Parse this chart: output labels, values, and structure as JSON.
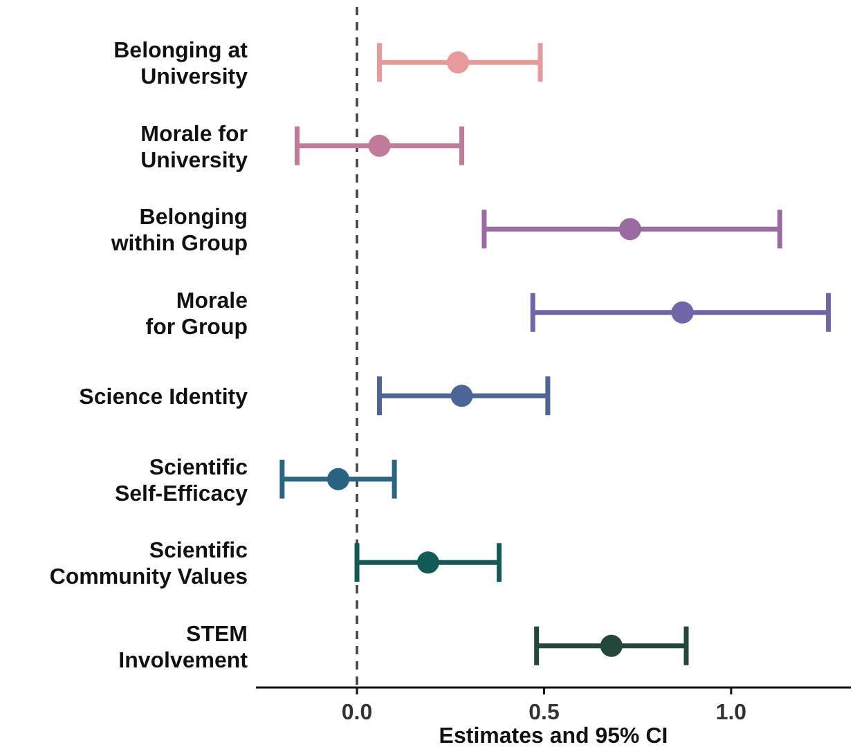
{
  "chart_data": {
    "type": "scatter",
    "orientation": "horizontal",
    "xlabel": "Estimates and 95% CI",
    "categories": [
      "Belonging at\nUniversity",
      "Morale for\nUniversity",
      "Belonging\nwithin Group",
      "Morale\nfor Group",
      "Science Identity",
      "Scientific\nSelf-Efficacy",
      "Scientific\nCommunity Values",
      "STEM\nInvolvement"
    ],
    "values": [
      0.27,
      0.06,
      0.73,
      0.87,
      0.28,
      -0.05,
      0.19,
      0.68
    ],
    "errors": [
      [
        0.06,
        0.49
      ],
      [
        -0.16,
        0.28
      ],
      [
        0.34,
        1.13
      ],
      [
        0.47,
        1.26
      ],
      [
        0.06,
        0.51
      ],
      [
        -0.2,
        0.1
      ],
      [
        0.0,
        0.38
      ],
      [
        0.48,
        0.88
      ]
    ],
    "colors": [
      "#e89a9a",
      "#c27a9a",
      "#9a6aa0",
      "#6f66a8",
      "#4a6596",
      "#2a6482",
      "#125a56",
      "#24473a"
    ],
    "xlim": [
      -0.27,
      1.32
    ],
    "xticks": [
      {
        "value": 0,
        "label": "0.0"
      },
      0.5,
      {
        "value": 1,
        "label": "1.0"
      }
    ],
    "ref_lines": [
      {
        "axis": "x",
        "value": 0,
        "line_style": "dashed",
        "color": "#444444"
      }
    ],
    "marker": "circle",
    "grid": false
  }
}
